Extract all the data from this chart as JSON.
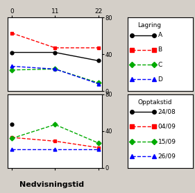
{
  "x_ticks": [
    0,
    11,
    22
  ],
  "x_label": "Nedvisningstid",
  "background_color": "#d4cfc8",
  "plot_bg": "#ffffff",
  "top_plot": {
    "A": {
      "x": [
        0,
        11,
        22
      ],
      "y": [
        42,
        42,
        33
      ],
      "color": "#000000",
      "linestyle": "-",
      "marker": "o",
      "markerfacecolor": "#000000"
    },
    "B": {
      "x": [
        0,
        11,
        22
      ],
      "y": [
        63,
        47,
        47
      ],
      "color": "#ff0000",
      "linestyle": "--",
      "marker": "s",
      "markerfacecolor": "#ff0000"
    },
    "C": {
      "x": [
        0,
        11,
        22
      ],
      "y": [
        23,
        24,
        9
      ],
      "color": "#00aa00",
      "linestyle": "--",
      "marker": "D",
      "markerfacecolor": "#00aa00"
    },
    "D": {
      "x": [
        0,
        11,
        22
      ],
      "y": [
        27,
        24,
        8
      ],
      "color": "#0000ff",
      "linestyle": "--",
      "marker": "^",
      "markerfacecolor": "#0000ff"
    }
  },
  "bottom_plot": {
    "24/08": {
      "x": [
        0
      ],
      "y": [
        47
      ],
      "color": "#000000",
      "linestyle": "-",
      "marker": "o",
      "markerfacecolor": "#000000"
    },
    "04/09": {
      "x": [
        0,
        11,
        22
      ],
      "y": [
        33,
        29,
        22
      ],
      "color": "#ff0000",
      "linestyle": "--",
      "marker": "s",
      "markerfacecolor": "#ff0000"
    },
    "15/09": {
      "x": [
        0,
        11,
        22
      ],
      "y": [
        32,
        47,
        27
      ],
      "color": "#00aa00",
      "linestyle": "--",
      "marker": "D",
      "markerfacecolor": "#00aa00"
    },
    "26/09": {
      "x": [
        0,
        11,
        22
      ],
      "y": [
        20,
        20,
        20
      ],
      "color": "#0000ff",
      "linestyle": "--",
      "marker": "^",
      "markerfacecolor": "#0000ff"
    }
  },
  "ylim": [
    0,
    80
  ],
  "yticks": [
    0,
    40,
    80
  ],
  "legend1_title": "Lagring",
  "legend1_entries": [
    {
      "label": "A",
      "color": "#000000",
      "linestyle": "-",
      "marker": "o"
    },
    {
      "label": "B",
      "color": "#ff0000",
      "linestyle": "--",
      "marker": "s"
    },
    {
      "label": "C",
      "color": "#00aa00",
      "linestyle": "--",
      "marker": "D"
    },
    {
      "label": "D",
      "color": "#0000ff",
      "linestyle": "--",
      "marker": "^"
    }
  ],
  "legend2_title": "Opptakstid",
  "legend2_entries": [
    {
      "label": "24/08",
      "color": "#000000",
      "linestyle": "-",
      "marker": "o"
    },
    {
      "label": "04/09",
      "color": "#ff0000",
      "linestyle": "--",
      "marker": "s"
    },
    {
      "label": "15/09",
      "color": "#00aa00",
      "linestyle": "--",
      "marker": "D"
    },
    {
      "label": "26/09",
      "color": "#0000ff",
      "linestyle": "--",
      "marker": "^"
    }
  ]
}
